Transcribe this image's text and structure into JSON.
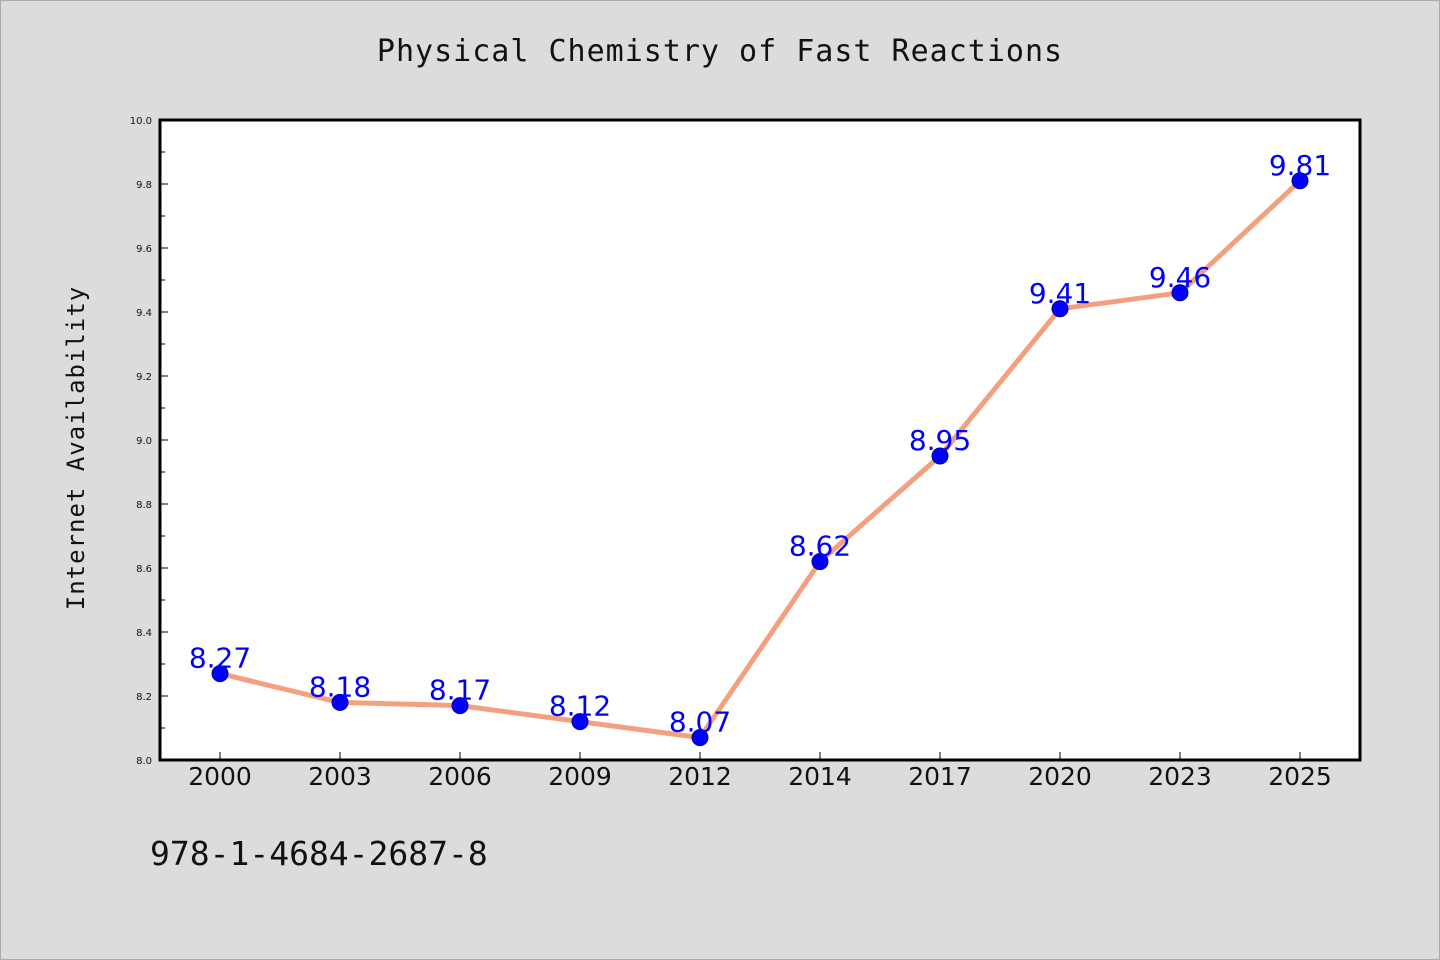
{
  "title": "Physical Chemistry of Fast Reactions",
  "isbn": "978-1-4684-2687-8",
  "chart_data": {
    "type": "line",
    "title": "Physical Chemistry of Fast Reactions",
    "xlabel": "",
    "ylabel": "Internet Availability",
    "categories": [
      "2000",
      "2003",
      "2006",
      "2009",
      "2012",
      "2014",
      "2017",
      "2020",
      "2023",
      "2025"
    ],
    "series": [
      {
        "values": [
          8.27,
          8.18,
          8.17,
          8.12,
          8.07,
          8.62,
          8.95,
          9.41,
          9.46,
          9.81
        ],
        "data_labels": [
          "8.27",
          "8.18",
          "8.17",
          "8.12",
          "8.07",
          "8.62",
          "8.95",
          "9.41",
          "9.46",
          "9.81"
        ]
      }
    ],
    "ylim": [
      8.0,
      10.0
    ],
    "yticks": [
      "8.0",
      "8.2",
      "8.4",
      "8.6",
      "8.8",
      "9.0",
      "9.2",
      "9.4",
      "9.6",
      "9.8",
      "10.0"
    ],
    "grid": false,
    "legend": "none",
    "colors": {
      "line": "#f4a07f",
      "marker_fill": "#0000ff",
      "marker_edge": "#00008b",
      "data_label": "#0000ff",
      "plot_bg": "#ffffff",
      "page_bg": "#dcdcdc"
    }
  }
}
